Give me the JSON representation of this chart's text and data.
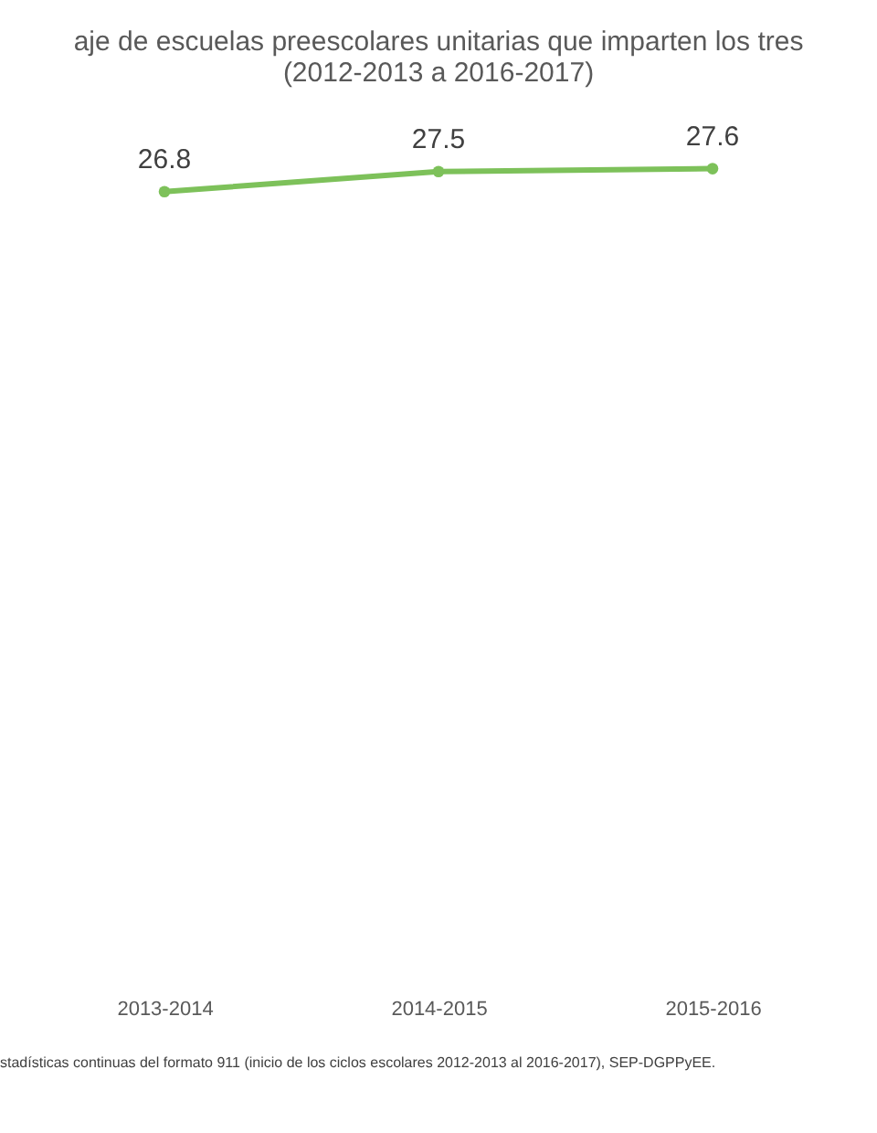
{
  "chart_data": {
    "type": "line",
    "title": [
      "aje de escuelas preescolares unitarias que imparten los tres",
      "(2012-2013 a 2016-2017)"
    ],
    "categories": [
      "2013-2014",
      "2014-2015",
      "2015-2016"
    ],
    "series": [
      {
        "color": "#7dc15a",
        "values": [
          26.8,
          27.5,
          27.6
        ]
      }
    ],
    "data_labels": true,
    "marker": "circle",
    "grid": false,
    "annotations": [
      "stadísticas continuas del formato 911 (inicio de los ciclos escolares 2012-2013 al 2016-2017), SEP-DGPPyEE."
    ]
  }
}
